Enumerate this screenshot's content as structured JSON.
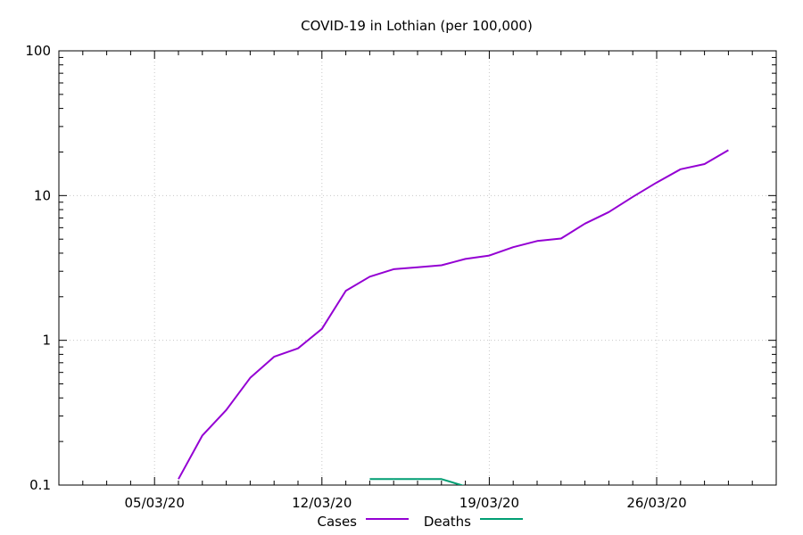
{
  "chart_data": {
    "type": "line",
    "title": "COVID-19 in Lothian (per 100,000)",
    "xlabel": "",
    "ylabel": "",
    "yscale": "log",
    "xlim": [
      "2020-03-01",
      "2020-03-31"
    ],
    "ylim": [
      0.1,
      100
    ],
    "grid": true,
    "legend": "bottom-center",
    "x_tick_labels": [
      {
        "date": "2020-03-05",
        "label": "05/03/20"
      },
      {
        "date": "2020-03-12",
        "label": "12/03/20"
      },
      {
        "date": "2020-03-19",
        "label": "19/03/20"
      },
      {
        "date": "2020-03-26",
        "label": "26/03/20"
      }
    ],
    "y_tick_labels": [
      {
        "value": 0.1,
        "label": "0.1"
      },
      {
        "value": 1,
        "label": "1"
      },
      {
        "value": 10,
        "label": "10"
      },
      {
        "value": 100,
        "label": "100"
      }
    ],
    "series": [
      {
        "name": "Cases",
        "color": "#9400d3",
        "points": [
          {
            "x": "2020-03-06",
            "y": 0.11
          },
          {
            "x": "2020-03-07",
            "y": 0.22
          },
          {
            "x": "2020-03-08",
            "y": 0.33
          },
          {
            "x": "2020-03-09",
            "y": 0.55
          },
          {
            "x": "2020-03-10",
            "y": 0.77
          },
          {
            "x": "2020-03-11",
            "y": 0.88
          },
          {
            "x": "2020-03-12",
            "y": 1.2
          },
          {
            "x": "2020-03-13",
            "y": 2.2
          },
          {
            "x": "2020-03-14",
            "y": 2.75
          },
          {
            "x": "2020-03-15",
            "y": 3.1
          },
          {
            "x": "2020-03-16",
            "y": 3.2
          },
          {
            "x": "2020-03-17",
            "y": 3.3
          },
          {
            "x": "2020-03-18",
            "y": 3.65
          },
          {
            "x": "2020-03-19",
            "y": 3.85
          },
          {
            "x": "2020-03-20",
            "y": 4.4
          },
          {
            "x": "2020-03-21",
            "y": 4.85
          },
          {
            "x": "2020-03-22",
            "y": 5.05
          },
          {
            "x": "2020-03-23",
            "y": 6.4
          },
          {
            "x": "2020-03-24",
            "y": 7.7
          },
          {
            "x": "2020-03-25",
            "y": 9.8
          },
          {
            "x": "2020-03-26",
            "y": 12.3
          },
          {
            "x": "2020-03-27",
            "y": 15.2
          },
          {
            "x": "2020-03-28",
            "y": 16.5
          },
          {
            "x": "2020-03-29",
            "y": 20.6
          }
        ]
      },
      {
        "name": "Deaths",
        "color": "#009e73",
        "points": [
          {
            "x": "2020-03-14",
            "y": 0.11
          },
          {
            "x": "2020-03-15",
            "y": 0.11
          },
          {
            "x": "2020-03-16",
            "y": 0.11
          },
          {
            "x": "2020-03-17",
            "y": 0.11
          },
          {
            "x": "2020-03-18",
            "y": 0.098
          }
        ]
      }
    ]
  }
}
